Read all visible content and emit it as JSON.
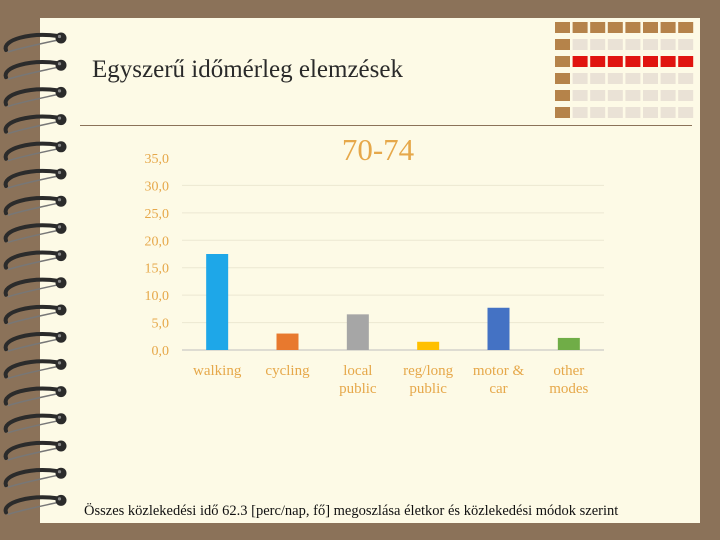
{
  "slide": {
    "title": "Egyszerű időmérleg elemzések",
    "caption": "Összes közlekedési idő 62.3 [perc/nap, fő] megoszlása életkor és közlekedési módok szerint"
  },
  "colors": {
    "background": "#8b7259",
    "page": "#fdfae6",
    "deco_brown": "#b5834a",
    "deco_red": "#e0140f",
    "deco_light": "#eae2d6",
    "spiral": "#2b2b2b"
  },
  "decor": {
    "spiral_binding": "spiral-rings",
    "grid_pattern": "brown-red-tile-grid"
  },
  "chart_data": {
    "type": "bar",
    "title": "70-74",
    "xlabel": "",
    "ylabel": "",
    "ylim": [
      0,
      35
    ],
    "yticks": [
      "35,0",
      "30,0",
      "25,0",
      "20,0",
      "15,0",
      "10,0",
      "5,0",
      "0,0"
    ],
    "grid": true,
    "legend": "none",
    "categories": [
      [
        "walking"
      ],
      [
        "cycling"
      ],
      [
        "local",
        "public"
      ],
      [
        "reg/long",
        "public"
      ],
      [
        "motor &",
        "car"
      ],
      [
        "other",
        "modes"
      ]
    ],
    "values": [
      17.5,
      3.0,
      6.5,
      1.5,
      7.7,
      2.2
    ],
    "bar_colors": [
      "#1ea7e8",
      "#e8792e",
      "#a6a6a6",
      "#ffc000",
      "#4472c4",
      "#70ad47"
    ],
    "axis_color": "#bfbfbf",
    "label_color": "#e6a84a"
  }
}
